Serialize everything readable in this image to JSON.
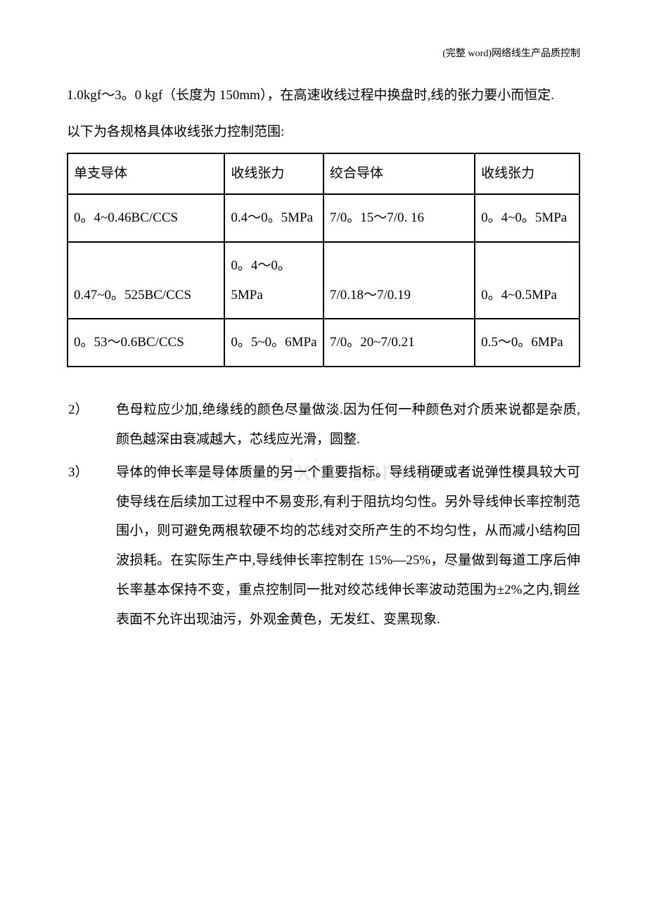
{
  "header": "(完整 word)网络线生产品质控制",
  "para1": "1.0kgf～3。0 kgf（长度为 150mm），在高速收线过程中换盘时,线的张力要小而恒定.",
  "intro": "以下为各规格具体收线张力控制范围:",
  "table": {
    "headers": [
      "单支导体",
      "收线张力",
      "绞合导体",
      "收线张力"
    ],
    "rows": [
      [
        "0。4~0.46BC/CCS",
        "0.4～0。5MPa",
        "7/0。15～7/0. 16",
        "0。4~0。5MPa"
      ],
      [
        "0.47~0。525BC/CCS",
        "0。4～0。5MPa",
        "7/0.18～7/0.19",
        "0。4~0.5MPa"
      ],
      [
        "0。53～0.6BC/CCS",
        "0。5~0。6MPa",
        "7/0。20~7/0.21",
        "0.5～0。6MPa"
      ]
    ]
  },
  "watermark": "www.zixin.com.cn",
  "list": [
    {
      "number": "2）",
      "text": "色母粒应少加,绝缘线的颜色尽量做淡.因为任何一种颜色对介质来说都是杂质,颜色越深由衰减越大，芯线应光滑，圆整."
    },
    {
      "number": "3）",
      "text": "导体的伸长率是导体质量的另一个重要指标。导线稍硬或者说弹性模具较大可使导线在后续加工过程中不易变形,有利于阻抗均匀性。另外导线伸长率控制范围小，则可避免两根软硬不均的芯线对交所产生的不均匀性，从而减小结构回波损耗。在实际生产中,导线伸长率控制在 15%—25%，尽量做到每道工序后伸长率基本保持不变，重点控制同一批对绞芯线伸长率波动范围为±2%之内,铜丝表面不允许出现油污，外观金黄色，无发红、变黑现象."
    }
  ]
}
